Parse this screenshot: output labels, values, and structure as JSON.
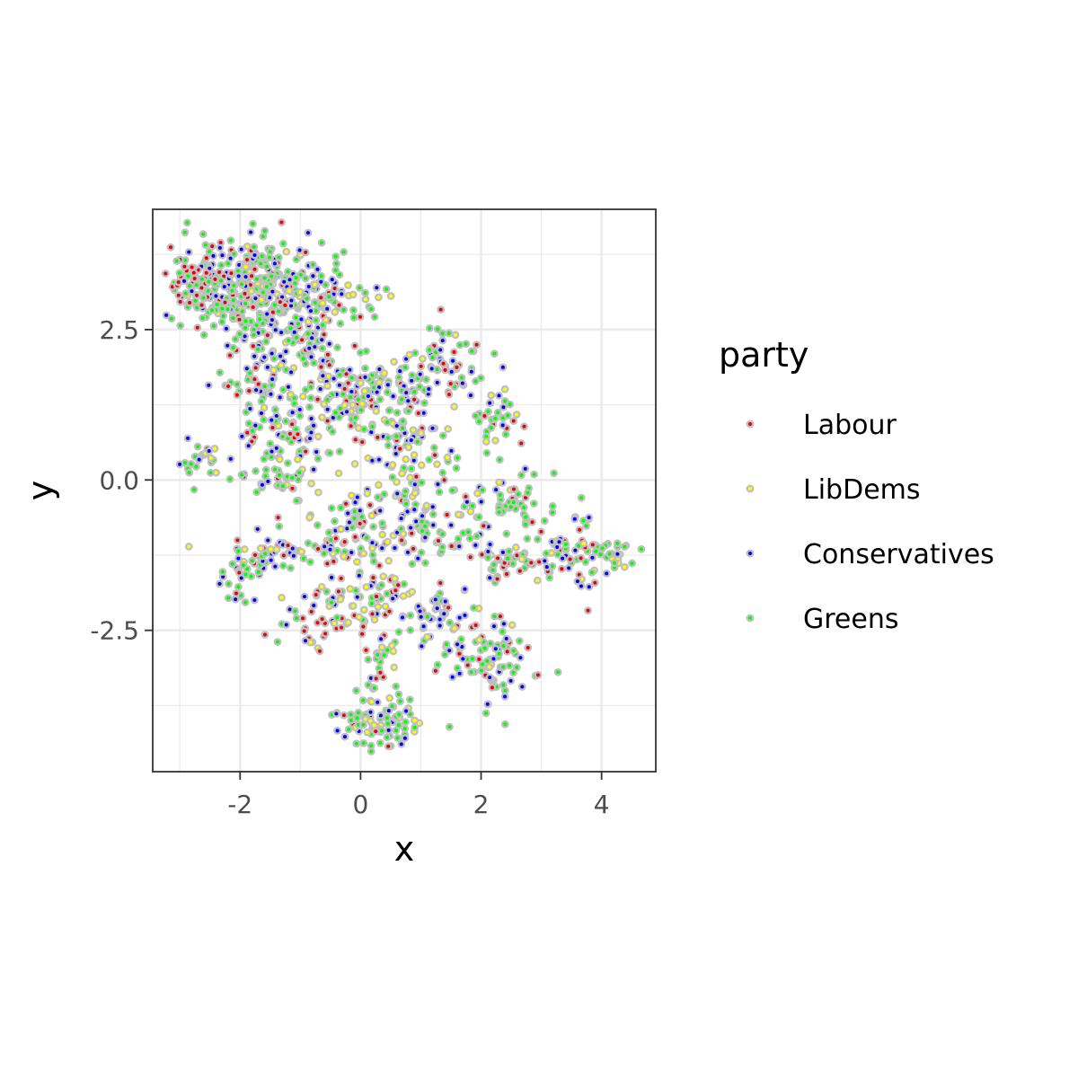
{
  "chart_data": {
    "type": "scatter",
    "title": "",
    "xlabel": "x",
    "ylabel": "y",
    "xlim": [
      -3.45,
      4.9
    ],
    "ylim": [
      -4.85,
      4.5
    ],
    "x_ticks": [
      -2,
      0,
      2,
      4
    ],
    "x_tick_labels": [
      "-2",
      "0",
      "2",
      "4"
    ],
    "y_ticks": [
      2.5,
      0.0,
      -2.5
    ],
    "y_tick_labels": [
      "2.5",
      "0.0",
      "-2.5"
    ],
    "grid": true,
    "point_outline_color": "#c0c0c0",
    "legend": {
      "title": "party",
      "position": "right",
      "entries": [
        {
          "label": "Labour",
          "color": "#e8000b"
        },
        {
          "label": "LibDems",
          "color": "#ffff00"
        },
        {
          "label": "Conservatives",
          "color": "#0000ff"
        },
        {
          "label": "Greens",
          "color": "#00ff00"
        }
      ]
    },
    "clusters": [
      {
        "cx": -1.9,
        "cy": 3.2,
        "sx": 0.65,
        "sy": 0.4,
        "n": 380,
        "weights": [
          0.15,
          0.08,
          0.27,
          0.5
        ]
      },
      {
        "cx": -2.75,
        "cy": 3.35,
        "sx": 0.15,
        "sy": 0.2,
        "n": 40,
        "weights": [
          0.6,
          0.05,
          0.15,
          0.2
        ]
      },
      {
        "cx": -1.0,
        "cy": 2.4,
        "sx": 0.35,
        "sy": 0.35,
        "n": 90,
        "weights": [
          0.15,
          0.1,
          0.3,
          0.45
        ]
      },
      {
        "cx": -0.3,
        "cy": 3.0,
        "sx": 0.35,
        "sy": 0.15,
        "n": 40,
        "weights": [
          0.1,
          0.15,
          0.2,
          0.55
        ]
      },
      {
        "cx": -0.1,
        "cy": 1.5,
        "sx": 0.35,
        "sy": 0.3,
        "n": 70,
        "weights": [
          0.15,
          0.15,
          0.3,
          0.4
        ]
      },
      {
        "cx": 0.5,
        "cy": 1.4,
        "sx": 0.35,
        "sy": 0.3,
        "n": 70,
        "weights": [
          0.12,
          0.2,
          0.2,
          0.48
        ]
      },
      {
        "cx": 1.4,
        "cy": 1.9,
        "sx": 0.3,
        "sy": 0.3,
        "n": 60,
        "weights": [
          0.15,
          0.15,
          0.35,
          0.35
        ]
      },
      {
        "cx": -1.7,
        "cy": 1.6,
        "sx": 0.4,
        "sy": 0.4,
        "n": 70,
        "weights": [
          0.2,
          0.1,
          0.2,
          0.5
        ]
      },
      {
        "cx": -1.0,
        "cy": 0.9,
        "sx": 0.45,
        "sy": 0.4,
        "n": 70,
        "weights": [
          0.15,
          0.15,
          0.25,
          0.45
        ]
      },
      {
        "cx": 0.8,
        "cy": 0.5,
        "sx": 0.4,
        "sy": 0.35,
        "n": 70,
        "weights": [
          0.1,
          0.2,
          0.35,
          0.35
        ]
      },
      {
        "cx": 2.2,
        "cy": 1.0,
        "sx": 0.25,
        "sy": 0.3,
        "n": 35,
        "weights": [
          0.15,
          0.15,
          0.2,
          0.5
        ]
      },
      {
        "cx": -2.6,
        "cy": 0.3,
        "sx": 0.25,
        "sy": 0.2,
        "n": 25,
        "weights": [
          0.1,
          0.1,
          0.2,
          0.6
        ]
      },
      {
        "cx": -1.4,
        "cy": 0.1,
        "sx": 0.35,
        "sy": 0.25,
        "n": 40,
        "weights": [
          0.1,
          0.2,
          0.2,
          0.5
        ]
      },
      {
        "cx": -0.2,
        "cy": -0.8,
        "sx": 0.45,
        "sy": 0.4,
        "n": 90,
        "weights": [
          0.15,
          0.2,
          0.25,
          0.4
        ]
      },
      {
        "cx": 0.8,
        "cy": -0.6,
        "sx": 0.35,
        "sy": 0.35,
        "n": 60,
        "weights": [
          0.15,
          0.15,
          0.3,
          0.4
        ]
      },
      {
        "cx": 1.8,
        "cy": -0.7,
        "sx": 0.35,
        "sy": 0.35,
        "n": 50,
        "weights": [
          0.2,
          0.15,
          0.25,
          0.4
        ]
      },
      {
        "cx": 2.6,
        "cy": -0.3,
        "sx": 0.25,
        "sy": 0.25,
        "n": 35,
        "weights": [
          0.1,
          0.1,
          0.2,
          0.6
        ]
      },
      {
        "cx": 3.4,
        "cy": -1.2,
        "sx": 0.35,
        "sy": 0.3,
        "n": 60,
        "weights": [
          0.2,
          0.1,
          0.25,
          0.45
        ]
      },
      {
        "cx": 4.2,
        "cy": -1.3,
        "sx": 0.2,
        "sy": 0.15,
        "n": 25,
        "weights": [
          0.15,
          0.1,
          0.15,
          0.6
        ]
      },
      {
        "cx": 2.5,
        "cy": -1.4,
        "sx": 0.35,
        "sy": 0.2,
        "n": 40,
        "weights": [
          0.2,
          0.1,
          0.2,
          0.5
        ]
      },
      {
        "cx": -1.6,
        "cy": -1.2,
        "sx": 0.35,
        "sy": 0.25,
        "n": 50,
        "weights": [
          0.2,
          0.15,
          0.35,
          0.3
        ]
      },
      {
        "cx": -2.0,
        "cy": -1.7,
        "sx": 0.15,
        "sy": 0.2,
        "n": 20,
        "weights": [
          0.15,
          0.1,
          0.2,
          0.55
        ]
      },
      {
        "cx": -0.6,
        "cy": -2.2,
        "sx": 0.45,
        "sy": 0.25,
        "n": 50,
        "weights": [
          0.4,
          0.15,
          0.2,
          0.25
        ]
      },
      {
        "cx": 0.3,
        "cy": -1.9,
        "sx": 0.35,
        "sy": 0.3,
        "n": 45,
        "weights": [
          0.2,
          0.25,
          0.2,
          0.35
        ]
      },
      {
        "cx": 1.3,
        "cy": -2.3,
        "sx": 0.35,
        "sy": 0.35,
        "n": 55,
        "weights": [
          0.15,
          0.15,
          0.35,
          0.35
        ]
      },
      {
        "cx": 2.2,
        "cy": -3.0,
        "sx": 0.35,
        "sy": 0.35,
        "n": 80,
        "weights": [
          0.15,
          0.1,
          0.3,
          0.45
        ]
      },
      {
        "cx": 0.3,
        "cy": -4.0,
        "sx": 0.35,
        "sy": 0.25,
        "n": 90,
        "weights": [
          0.1,
          0.15,
          0.2,
          0.55
        ]
      },
      {
        "cx": 0.3,
        "cy": -3.0,
        "sx": 0.2,
        "sy": 0.3,
        "n": 25,
        "weights": [
          0.2,
          0.2,
          0.3,
          0.3
        ]
      },
      {
        "cx": -0.8,
        "cy": -2.8,
        "sx": 0.1,
        "sy": 0.1,
        "n": 6,
        "weights": [
          0.2,
          0.2,
          0.2,
          0.4
        ]
      }
    ]
  }
}
